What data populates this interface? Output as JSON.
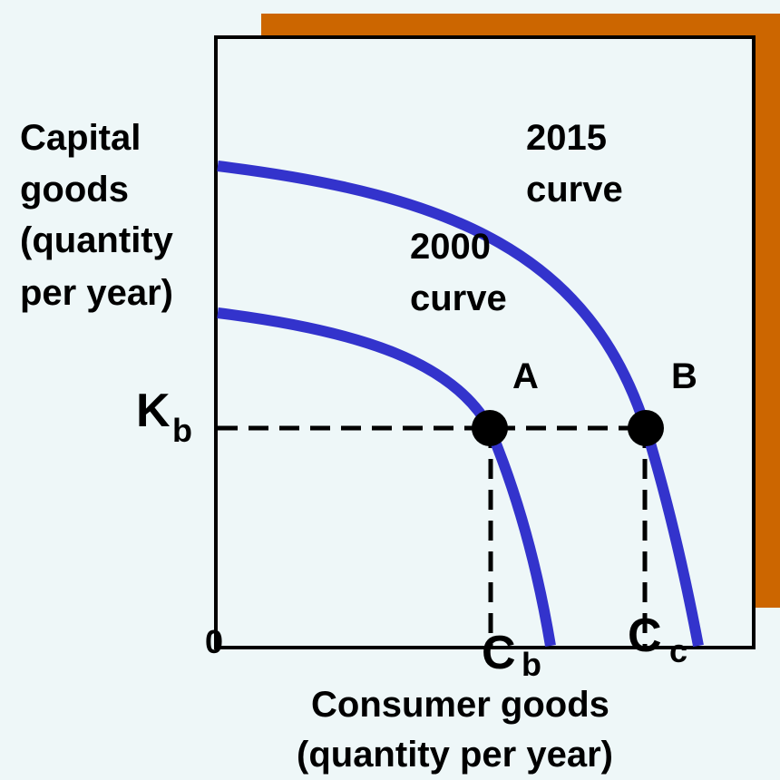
{
  "y_axis_label": [
    "Capital",
    "goods",
    "(quantity",
    "per year)"
  ],
  "x_axis_label": [
    "Consumer goods",
    "(quantity per year)"
  ],
  "curves": [
    {
      "label": [
        "2015",
        "curve"
      ]
    },
    {
      "label": [
        "2000",
        "curve"
      ]
    }
  ],
  "points": [
    {
      "label": "A"
    },
    {
      "label": "B"
    }
  ],
  "k_label": {
    "main": "K",
    "sub": "b"
  },
  "origin_label": "0",
  "c_labels": [
    {
      "main": "C",
      "sub": "b"
    },
    {
      "main": "C",
      "sub": "c"
    }
  ]
}
